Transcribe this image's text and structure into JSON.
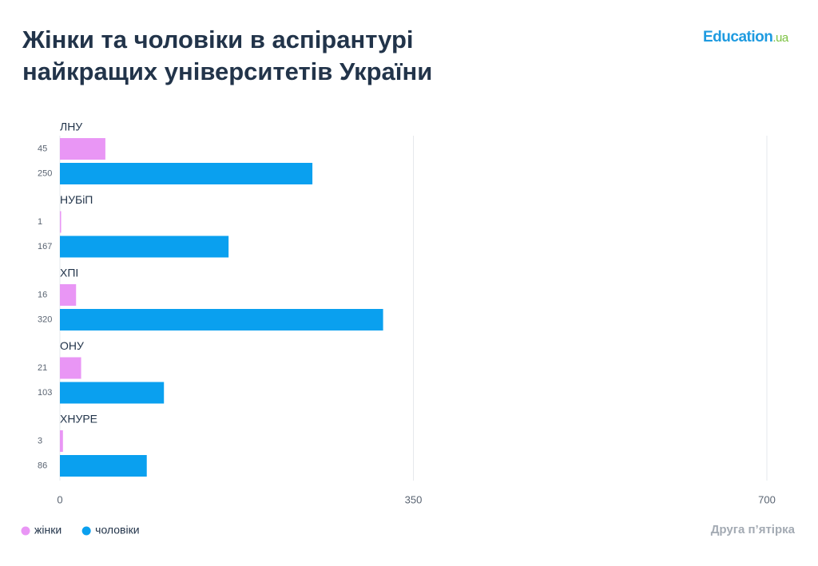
{
  "logo": {
    "text": "Education",
    "suffix": ".ua"
  },
  "chart_data": {
    "type": "bar",
    "orientation": "horizontal",
    "title": "Жінки та чоловіки в аспірантурі\nнайкращих університетів України",
    "note": "Друга п’ятірка",
    "categories": [
      "ЛНУ",
      "НУБіП",
      "ХПІ",
      "ОНУ",
      "ХНУРЕ"
    ],
    "series": [
      {
        "name": "жінки",
        "color": "#e996f5",
        "values": [
          45,
          1,
          16,
          21,
          3
        ]
      },
      {
        "name": "чоловіки",
        "color": "#0aa0ef",
        "values": [
          250,
          167,
          320,
          103,
          86
        ]
      }
    ],
    "xlim": [
      0,
      700
    ],
    "xticks": [
      0,
      350,
      700
    ],
    "grid": true
  }
}
